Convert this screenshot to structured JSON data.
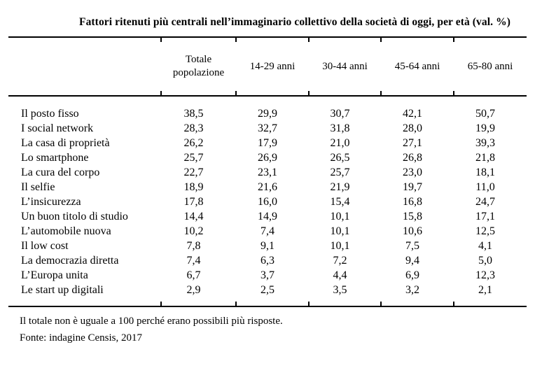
{
  "title": "Fattori ritenuti più centrali nell’immaginario collettivo della società di oggi, per età (val. %)",
  "table": {
    "columns": [
      "Totale popolazione",
      "14-29 anni",
      "30-44 anni",
      "45-64 anni",
      "65-80 anni"
    ],
    "rows": [
      {
        "label": "Il posto fisso",
        "values": [
          "38,5",
          "29,9",
          "30,7",
          "42,1",
          "50,7"
        ]
      },
      {
        "label": "I social network",
        "values": [
          "28,3",
          "32,7",
          "31,8",
          "28,0",
          "19,9"
        ]
      },
      {
        "label": "La casa di proprietà",
        "values": [
          "26,2",
          "17,9",
          "21,0",
          "27,1",
          "39,3"
        ]
      },
      {
        "label": "Lo smartphone",
        "values": [
          "25,7",
          "26,9",
          "26,5",
          "26,8",
          "21,8"
        ]
      },
      {
        "label": "La cura del corpo",
        "values": [
          "22,7",
          "23,1",
          "25,7",
          "23,0",
          "18,1"
        ]
      },
      {
        "label": "Il selfie",
        "values": [
          "18,9",
          "21,6",
          "21,9",
          "19,7",
          "11,0"
        ]
      },
      {
        "label": "L’insicurezza",
        "values": [
          "17,8",
          "16,0",
          "15,4",
          "16,8",
          "24,7"
        ]
      },
      {
        "label": "Un buon titolo di studio",
        "values": [
          "14,4",
          "14,9",
          "10,1",
          "15,8",
          "17,1"
        ]
      },
      {
        "label": "L’automobile nuova",
        "values": [
          "10,2",
          "7,4",
          "10,1",
          "10,6",
          "12,5"
        ]
      },
      {
        "label": "Il low cost",
        "values": [
          "7,8",
          "9,1",
          "10,1",
          "7,5",
          "4,1"
        ]
      },
      {
        "label": "La democrazia diretta",
        "values": [
          "7,4",
          "6,3",
          "7,2",
          "9,4",
          "5,0"
        ]
      },
      {
        "label": "L’Europa unita",
        "values": [
          "6,7",
          "3,7",
          "4,4",
          "6,9",
          "12,3"
        ]
      },
      {
        "label": "Le start up digitali",
        "values": [
          "2,9",
          "2,5",
          "3,5",
          "3,2",
          "2,1"
        ]
      }
    ]
  },
  "notes": {
    "note": "Il totale non è uguale a 100 perché erano possibili più risposte.",
    "source": "Fonte: indagine Censis, 2017"
  }
}
